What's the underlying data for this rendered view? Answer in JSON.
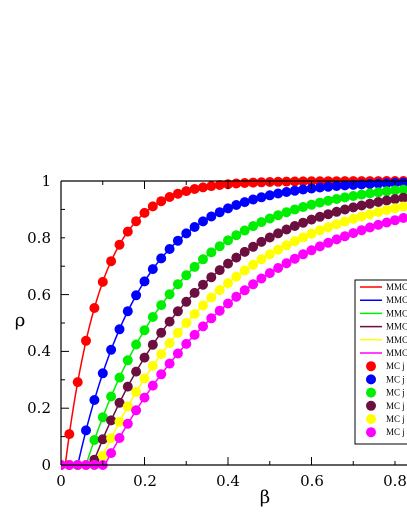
{
  "chart_data": {
    "type": "line",
    "title": "",
    "xlabel": "β",
    "ylabel": "ρ",
    "xlim": [
      0,
      0.85
    ],
    "ylim": [
      0,
      1
    ],
    "xticks": [
      "0",
      "0.2",
      "0.4",
      "0.6",
      "0.8"
    ],
    "yticks": [
      "0",
      "0.2",
      "0.4",
      "0.6",
      "0.8",
      "1"
    ],
    "grid": false,
    "legend_position": "right",
    "colors": [
      "#ff0000",
      "#0000ff",
      "#00ee00",
      "#6b0f3f",
      "#ffff00",
      "#ff00ff"
    ],
    "beta_thresholds": [
      0.01,
      0.04,
      0.06,
      0.075,
      0.09,
      0.105
    ],
    "saturation_rates": [
      11.5,
      6.5,
      4.6,
      3.8,
      3.3,
      2.85
    ],
    "legend": {
      "lines": [
        "MMC",
        "MMC",
        "MMC",
        "MMC",
        "MMC",
        "MMC"
      ],
      "markers": [
        "MC j",
        "MC j",
        "MC j",
        "MC j",
        "MC j",
        "MC j"
      ]
    }
  }
}
